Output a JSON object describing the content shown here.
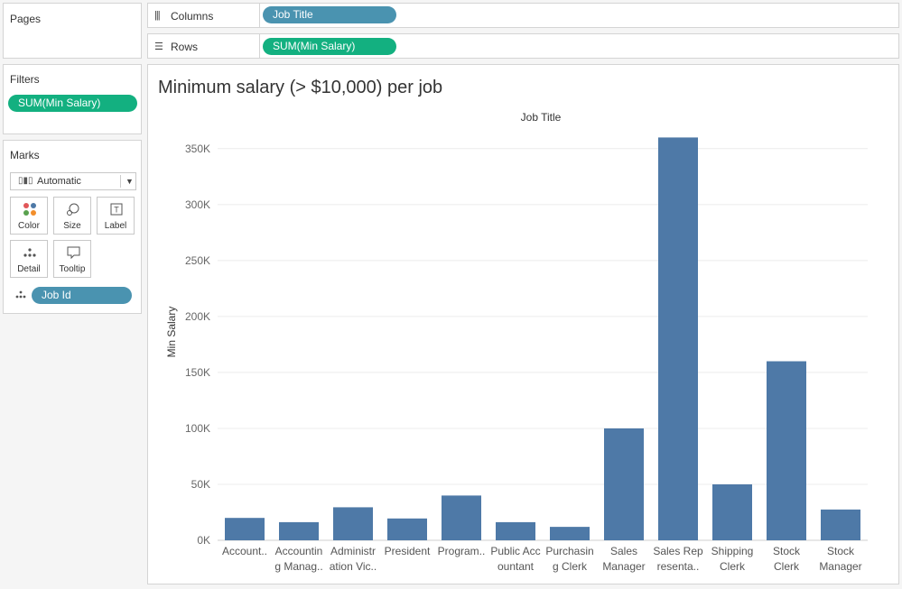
{
  "pages": {
    "title": "Pages"
  },
  "filters": {
    "title": "Filters",
    "pills": [
      "SUM(Min Salary)"
    ]
  },
  "marks": {
    "title": "Marks",
    "type": "Automatic",
    "buttons": {
      "color": "Color",
      "size": "Size",
      "label": "Label",
      "detail": "Detail",
      "tooltip": "Tooltip"
    },
    "detail_pill": "Job Id"
  },
  "columns": {
    "label": "Columns",
    "pill": "Job Title"
  },
  "rows": {
    "label": "Rows",
    "pill": "SUM(Min Salary)"
  },
  "viz": {
    "title": "Minimum salary (> $10,000) per job"
  },
  "colors": {
    "bar": "#4e79a7",
    "green_pill": "#13b080",
    "blue_pill": "#4a93b0"
  },
  "chart_data": {
    "type": "bar",
    "title": "Minimum salary (> $10,000) per job",
    "xlabel": "Job Title",
    "ylabel": "Min Salary",
    "ylim": [
      0,
      370000
    ],
    "yticks": [
      0,
      50000,
      100000,
      150000,
      200000,
      250000,
      300000,
      350000
    ],
    "ytick_labels": [
      "0K",
      "50K",
      "100K",
      "150K",
      "200K",
      "250K",
      "300K",
      "350K"
    ],
    "categories": [
      [
        "Account.."
      ],
      [
        "Accountin",
        "g Manag.."
      ],
      [
        "Administr",
        "ation Vic.."
      ],
      [
        "President"
      ],
      [
        "Program.."
      ],
      [
        "Public Acc",
        "ountant"
      ],
      [
        "Purchasin",
        "g Clerk"
      ],
      [
        "Sales",
        "Manager"
      ],
      [
        "Sales Rep",
        "resenta.."
      ],
      [
        "Shipping",
        "Clerk"
      ],
      [
        "Stock",
        "Clerk"
      ],
      [
        "Stock",
        "Manager"
      ]
    ],
    "values": [
      20000,
      16200,
      29500,
      19500,
      40000,
      16200,
      12000,
      100000,
      360000,
      50000,
      160000,
      27500
    ],
    "grid": "horizontal"
  }
}
